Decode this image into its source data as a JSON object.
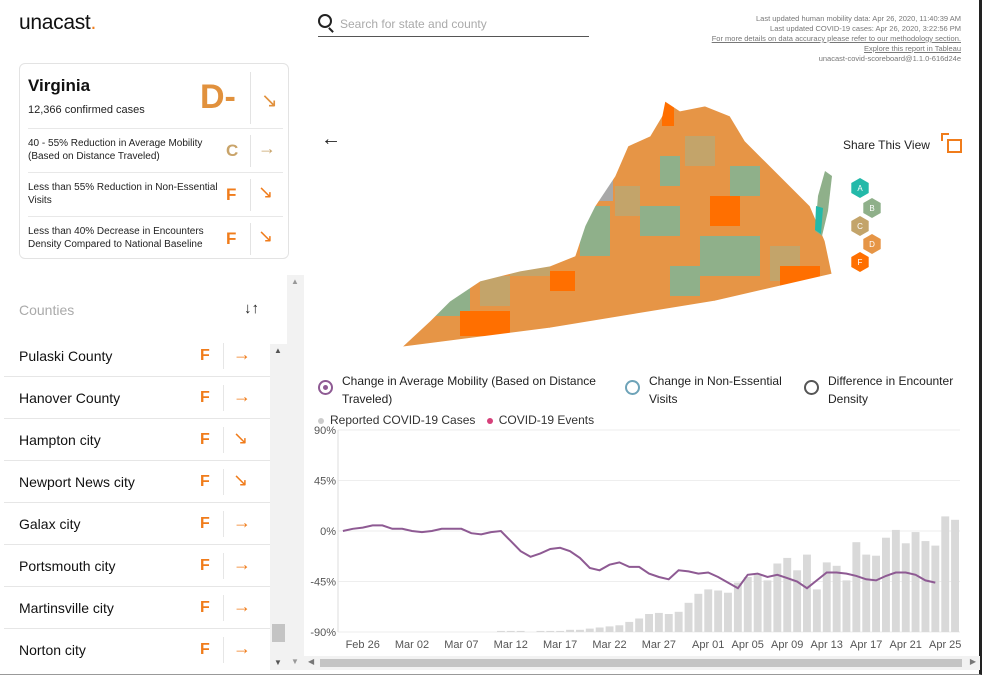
{
  "logo": {
    "text": "unacast",
    "dot": "."
  },
  "search": {
    "placeholder": "Search for state and county",
    "value": ""
  },
  "meta": {
    "line1": "Last updated human mobility data: Apr 26, 2020, 11:40:39 AM",
    "line2": "Last updated COVID-19 cases: Apr 26, 2020, 3:22:56 PM",
    "line3": "For more details on data accuracy please refer to our methodology section.",
    "line4": "Explore this report in Tableau",
    "line5": "unacast-covid-scoreboard@1.1.0-616d24e"
  },
  "state": {
    "name": "Virginia",
    "cases": "12,366 confirmed cases",
    "grade": "D-",
    "arrow": "↘",
    "metrics": [
      {
        "label": "40 - 55% Reduction in Average Mobility (Based on Distance Traveled)",
        "grade": "C",
        "arrow": "→",
        "color": "#c9a46a"
      },
      {
        "label": "Less than 55% Reduction in Non-Essential Visits",
        "grade": "F",
        "arrow": "↘",
        "color": "#f07c1b"
      },
      {
        "label": "Less than 40% Decrease in Encounters Density Compared to National Baseline",
        "grade": "F",
        "arrow": "↘",
        "color": "#f07c1b"
      }
    ]
  },
  "counties": {
    "title": "Counties",
    "items": [
      {
        "name": "Pulaski County",
        "grade": "F",
        "arrow": "→"
      },
      {
        "name": "Hanover County",
        "grade": "F",
        "arrow": "→"
      },
      {
        "name": "Hampton city",
        "grade": "F",
        "arrow": "↘"
      },
      {
        "name": "Newport News city",
        "grade": "F",
        "arrow": "↘"
      },
      {
        "name": "Galax city",
        "grade": "F",
        "arrow": "→"
      },
      {
        "name": "Portsmouth city",
        "grade": "F",
        "arrow": "→"
      },
      {
        "name": "Martinsville city",
        "grade": "F",
        "arrow": "→"
      },
      {
        "name": "Norton city",
        "grade": "F",
        "arrow": "→"
      }
    ]
  },
  "share": {
    "label": "Share This View"
  },
  "grade_legend": [
    {
      "grade": "A",
      "color": "#23b9a9"
    },
    {
      "grade": "B",
      "color": "#8fb08a"
    },
    {
      "grade": "C",
      "color": "#c3a46a"
    },
    {
      "grade": "D",
      "color": "#e69546"
    },
    {
      "grade": "F",
      "color": "#ff6f00"
    }
  ],
  "metric_options": [
    {
      "label_line1": "Change in Average Mobility (Based on Distance",
      "label_line2": "Traveled)",
      "selected": true
    },
    {
      "label_line1": "Change in Non-Essential",
      "label_line2": "Visits",
      "selected": false
    },
    {
      "label_line1": "Difference in Encounter",
      "label_line2": "Density",
      "selected": false
    }
  ],
  "chart_legend": {
    "cases": {
      "label": "Reported COVID-19 Cases",
      "color": "#cccccc"
    },
    "events": {
      "label": "COVID-19 Events",
      "color": "#d6407a"
    }
  },
  "colors": {
    "accent": "#f07c1b",
    "line": "#8e5a93",
    "bars": "#d9d9d9"
  },
  "chart_data": {
    "type": "bar",
    "x_start": "Feb 24",
    "ylim": [
      -90,
      90
    ],
    "y_ticks": [
      "90%",
      "45%",
      "0%",
      "-45%",
      "-90%"
    ],
    "y_tick_values": [
      90,
      45,
      0,
      -45,
      -90
    ],
    "x_ticks": [
      {
        "label": "Feb 26",
        "index": 2
      },
      {
        "label": "Mar 02",
        "index": 7
      },
      {
        "label": "Mar 07",
        "index": 12
      },
      {
        "label": "Mar 12",
        "index": 17
      },
      {
        "label": "Mar 17",
        "index": 22
      },
      {
        "label": "Mar 22",
        "index": 27
      },
      {
        "label": "Mar 27",
        "index": 32
      },
      {
        "label": "Apr 01",
        "index": 37
      },
      {
        "label": "Apr 05",
        "index": 41
      },
      {
        "label": "Apr 09",
        "index": 45
      },
      {
        "label": "Apr 13",
        "index": 49
      },
      {
        "label": "Apr 17",
        "index": 53
      },
      {
        "label": "Apr 21",
        "index": 57
      },
      {
        "label": "Apr 25",
        "index": 61
      }
    ],
    "series": [
      {
        "name": "Reported COVID-19 Cases",
        "kind": "bar",
        "values": [
          0,
          0,
          0,
          0,
          0,
          0,
          0,
          0,
          0,
          0,
          0,
          0,
          0,
          0,
          0,
          0,
          1,
          1,
          1,
          0,
          1,
          1,
          1,
          2,
          2,
          3,
          4,
          5,
          6,
          9,
          12,
          16,
          17,
          16,
          18,
          26,
          34,
          38,
          37,
          35,
          44,
          49,
          51,
          46,
          61,
          66,
          55,
          69,
          38,
          62,
          59,
          46,
          80,
          69,
          68,
          84,
          91,
          79,
          89,
          81,
          77,
          103,
          100
        ],
        "unit": "percent-axis"
      },
      {
        "name": "Change in Average Mobility",
        "kind": "line",
        "values": [
          0,
          2,
          3,
          5,
          5,
          2,
          2,
          0,
          -1,
          0,
          2,
          2,
          2,
          -2,
          -3,
          -1,
          0,
          -9,
          -18,
          -23,
          -20,
          -16,
          -15,
          -18,
          -24,
          -33,
          -35,
          -30,
          -28,
          -32,
          -32,
          -38,
          -41,
          -43,
          -35,
          -36,
          -38,
          -37,
          -41,
          -46,
          -51,
          -39,
          -38,
          -41,
          -39,
          -42,
          -45,
          -51,
          -44,
          -37,
          -37,
          -38,
          -40,
          -43,
          -44,
          -40,
          -37,
          -37,
          -39,
          -44,
          -46
        ]
      }
    ]
  }
}
